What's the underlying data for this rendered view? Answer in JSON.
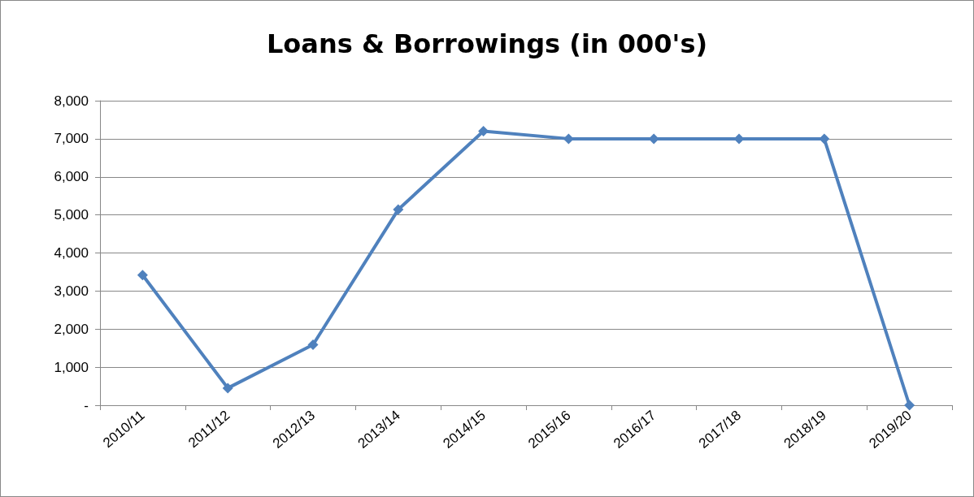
{
  "chart_data": {
    "type": "line",
    "title": "Loans & Borrowings (in 000's)",
    "categories": [
      "2010/11",
      "2011/12",
      "2012/13",
      "2013/14",
      "2014/15",
      "2015/16",
      "2016/17",
      "2017/18",
      "2018/19",
      "2019/20"
    ],
    "series": [
      {
        "color": "#4f81bd",
        "values": [
          3420,
          450,
          1590,
          5140,
          7200,
          7000,
          7000,
          7000,
          7000,
          0
        ]
      }
    ],
    "ylim": [
      0,
      8000
    ],
    "yticks": [
      {
        "value": 0,
        "label": "-"
      },
      {
        "value": 1000,
        "label": "1,000"
      },
      {
        "value": 2000,
        "label": "2,000"
      },
      {
        "value": 3000,
        "label": "3,000"
      },
      {
        "value": 4000,
        "label": "4,000"
      },
      {
        "value": 5000,
        "label": "5,000"
      },
      {
        "value": 6000,
        "label": "6,000"
      },
      {
        "value": 7000,
        "label": "7,000"
      },
      {
        "value": 8000,
        "label": "8,000"
      }
    ],
    "grid": "y",
    "marker": "diamond",
    "line_style": "solid"
  }
}
